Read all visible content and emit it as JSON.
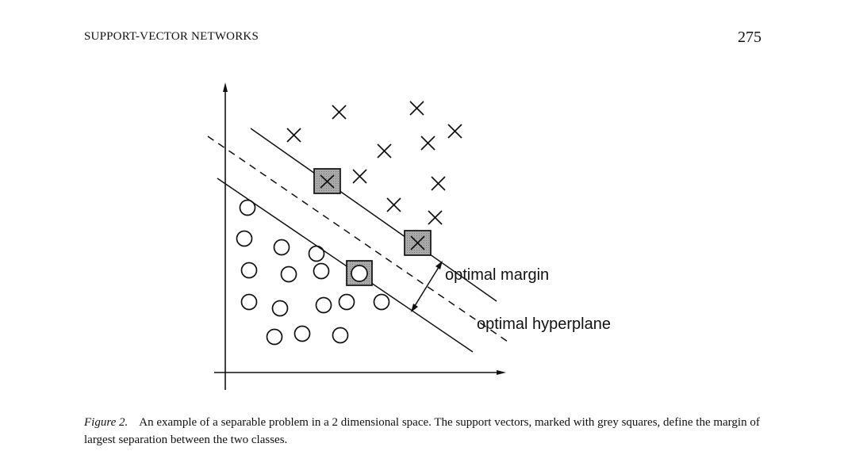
{
  "header": {
    "running_title": "SUPPORT-VECTOR NETWORKS",
    "page_number": "275"
  },
  "figure": {
    "labels": {
      "margin": "optimal margin",
      "hyperplane": "optimal hyperplane"
    }
  },
  "caption": {
    "label": "Figure 2.",
    "text": "An example of a separable problem in a 2 dimensional space. The support vectors, marked with grey squares, define the margin of largest separation between the two classes."
  },
  "colors": {
    "ink": "#111111",
    "support_vector_fill": "#a9a9a9"
  }
}
